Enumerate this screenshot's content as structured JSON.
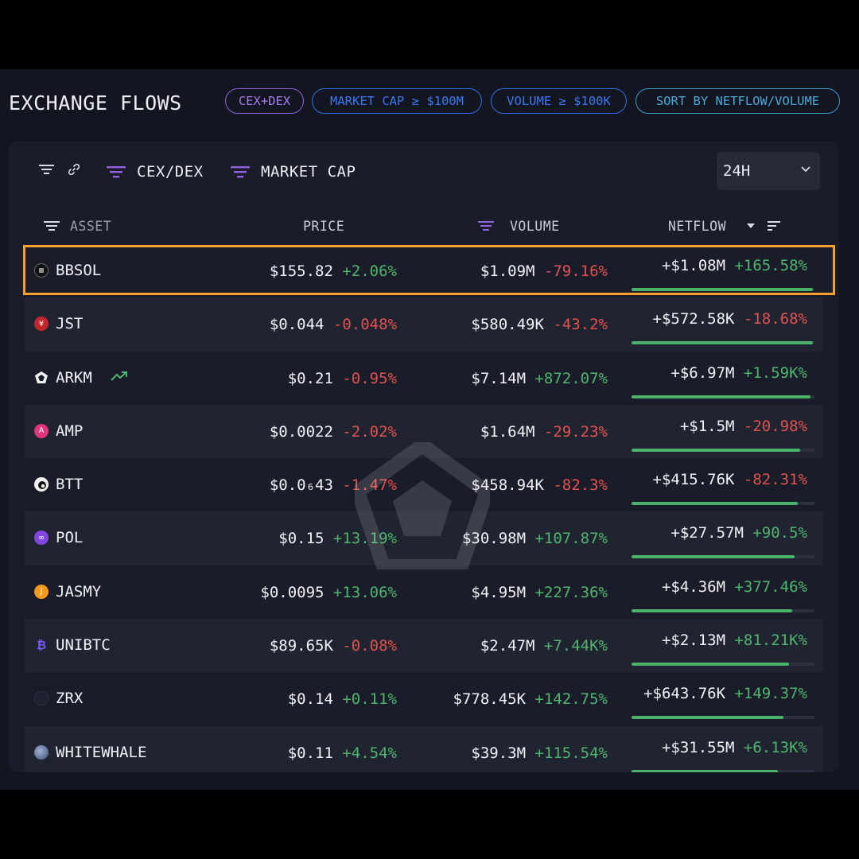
{
  "header": {
    "title": "EXCHANGE FLOWS",
    "filters": [
      {
        "label": "CEX+DEX",
        "color": "#a67bf0"
      },
      {
        "label": "MARKET CAP ≥ $100M",
        "color": "#3a78f0"
      },
      {
        "label": "VOLUME ≥ $100K",
        "color": "#3a78f0"
      },
      {
        "label": "SORT BY NETFLOW/VOLUME",
        "color": "#4aa8d8"
      }
    ]
  },
  "toolbar": {
    "chip_cex_dex": "CEX/DEX",
    "chip_market_cap": "MARKET CAP",
    "range_value": "24H"
  },
  "columns": {
    "asset": "ASSET",
    "price": "PRICE",
    "volume": "VOLUME",
    "netflow": "NETFLOW"
  },
  "colors": {
    "positive": "#4fb56e",
    "negative": "#e0524f",
    "highlight": "#f5a030",
    "accent": "#a67bf0"
  },
  "rows": [
    {
      "asset": "BBSOL",
      "icon": "bbsol-icon",
      "price": "$155.82",
      "price_change": "+2.06%",
      "volume": "$1.09M",
      "volume_change": "-79.16%",
      "netflow": "+$1.08M",
      "netflow_change": "+165.58%",
      "bar": 0.99,
      "trend": false
    },
    {
      "asset": "JST",
      "icon": "jst-icon",
      "price": "$0.044",
      "price_change": "-0.048%",
      "volume": "$580.49K",
      "volume_change": "-43.2%",
      "netflow": "+$572.58K",
      "netflow_change": "-18.68%",
      "bar": 0.99,
      "trend": false
    },
    {
      "asset": "ARKM",
      "icon": "arkm-icon",
      "price": "$0.21",
      "price_change": "-0.95%",
      "volume": "$7.14M",
      "volume_change": "+872.07%",
      "netflow": "+$6.97M",
      "netflow_change": "+1.59K%",
      "bar": 0.98,
      "trend": true
    },
    {
      "asset": "AMP",
      "icon": "amp-icon",
      "price": "$0.0022",
      "price_change": "-2.02%",
      "volume": "$1.64M",
      "volume_change": "-29.23%",
      "netflow": "+$1.5M",
      "netflow_change": "-20.98%",
      "bar": 0.92,
      "trend": false
    },
    {
      "asset": "BTT",
      "icon": "btt-icon",
      "price": "$0.0₆43",
      "price_change": "-1.47%",
      "volume": "$458.94K",
      "volume_change": "-82.3%",
      "netflow": "+$415.76K",
      "netflow_change": "-82.31%",
      "bar": 0.91,
      "trend": false
    },
    {
      "asset": "POL",
      "icon": "pol-icon",
      "price": "$0.15",
      "price_change": "+13.19%",
      "volume": "$30.98M",
      "volume_change": "+107.87%",
      "netflow": "+$27.57M",
      "netflow_change": "+90.5%",
      "bar": 0.89,
      "trend": false
    },
    {
      "asset": "JASMY",
      "icon": "jasmy-icon",
      "price": "$0.0095",
      "price_change": "+13.06%",
      "volume": "$4.95M",
      "volume_change": "+227.36%",
      "netflow": "+$4.36M",
      "netflow_change": "+377.46%",
      "bar": 0.88,
      "trend": false
    },
    {
      "asset": "UNIBTC",
      "icon": "unibtc-icon",
      "price": "$89.65K",
      "price_change": "-0.08%",
      "volume": "$2.47M",
      "volume_change": "+7.44K%",
      "netflow": "+$2.13M",
      "netflow_change": "+81.21K%",
      "bar": 0.86,
      "trend": false
    },
    {
      "asset": "ZRX",
      "icon": "zrx-icon",
      "price": "$0.14",
      "price_change": "+0.11%",
      "volume": "$778.45K",
      "volume_change": "+142.75%",
      "netflow": "+$643.76K",
      "netflow_change": "+149.37%",
      "bar": 0.83,
      "trend": false
    },
    {
      "asset": "WHITEWHALE",
      "icon": "whitewhale-icon",
      "price": "$0.11",
      "price_change": "+4.54%",
      "volume": "$39.3M",
      "volume_change": "+115.54%",
      "netflow": "+$31.55M",
      "netflow_change": "+6.13K%",
      "bar": 0.8,
      "trend": false
    }
  ]
}
